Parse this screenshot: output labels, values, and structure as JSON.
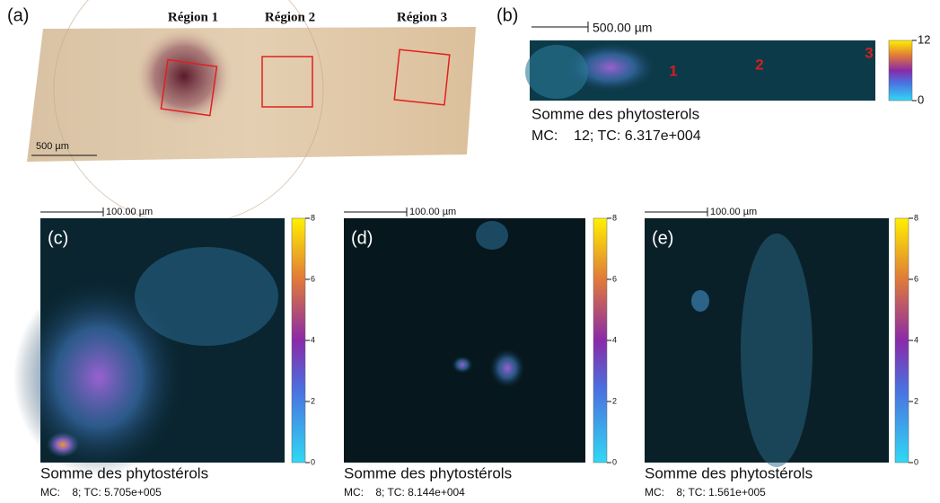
{
  "panels": [
    {
      "label": "(a)",
      "regions": [
        "Région 1",
        "Région 2",
        "Région 3"
      ],
      "scale_bar": "500 µm"
    },
    {
      "label": "(b)",
      "scale_bar": "500.00 µm",
      "markers": [
        "1",
        "2",
        "3"
      ],
      "colorbar": {
        "lim": [
          0,
          12
        ],
        "ticks": [
          0,
          12
        ]
      },
      "caption": "Somme des phytosterols",
      "stats": "MC:    12; TC: 6.317e+004"
    },
    {
      "label": "(c)",
      "scale_bar": "100.00 µm",
      "colorbar": {
        "lim": [
          0,
          8
        ],
        "ticks": [
          0,
          2,
          4,
          6,
          8
        ]
      },
      "caption": "Somme des phytostérols",
      "stats": "MC:    8; TC: 5.705e+005"
    },
    {
      "label": "(d)",
      "scale_bar": "100.00 µm",
      "colorbar": {
        "lim": [
          0,
          8
        ],
        "ticks": [
          0,
          2,
          4,
          6,
          8
        ]
      },
      "caption": "Somme des phytostérols",
      "stats": "MC:    8; TC: 8.144e+004"
    },
    {
      "label": "(e)",
      "scale_bar": "100.00 µm",
      "colorbar": {
        "lim": [
          0,
          8
        ],
        "ticks": [
          0,
          2,
          4,
          6,
          8
        ]
      },
      "caption": "Somme des phytostérols",
      "stats": "MC:    8; TC: 1.561e+005"
    }
  ]
}
